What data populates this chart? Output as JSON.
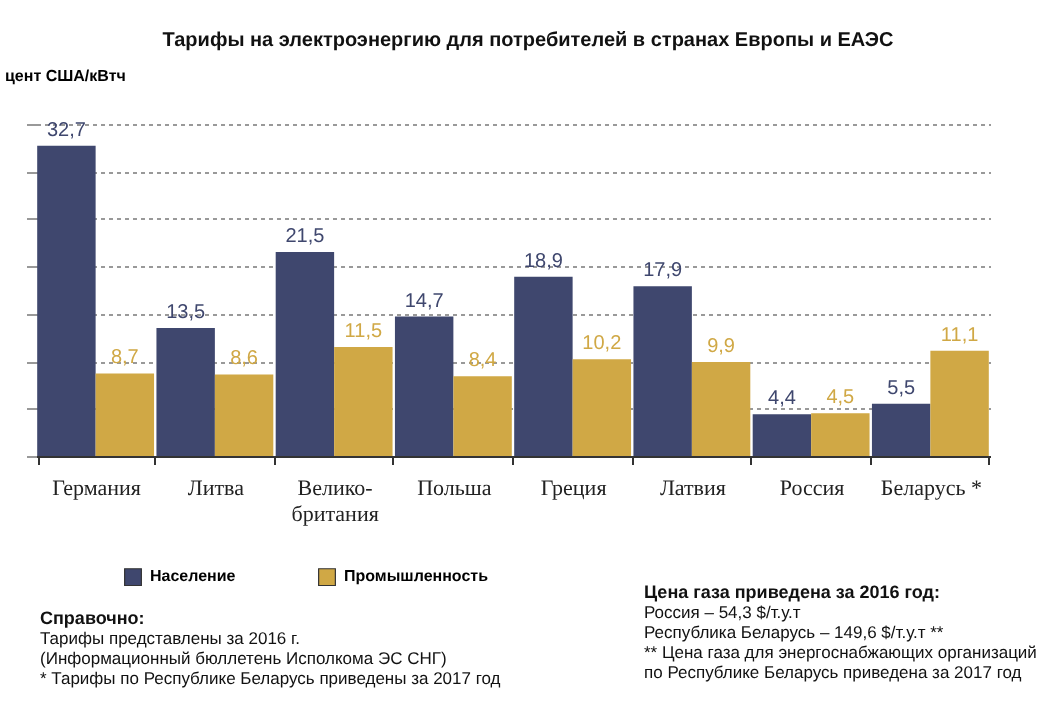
{
  "chart_data": {
    "type": "bar",
    "title": "Тарифы на электроэнергию для потребителей в странах Европы и ЕАЭС",
    "ylabel": "цент США/кВтч",
    "categories": [
      "Германия",
      "Литва",
      "Велико-британия",
      "Польша",
      "Греция",
      "Латвия",
      "Россия",
      "Беларусь *"
    ],
    "series": [
      {
        "name": "Население",
        "color": "#3f476e",
        "values": [
          32.7,
          13.5,
          21.5,
          14.7,
          18.9,
          17.9,
          4.4,
          5.5
        ],
        "value_labels": [
          "32,7",
          "13,5",
          "21,5",
          "14,7",
          "18,9",
          "17,9",
          "4,4",
          "5,5"
        ]
      },
      {
        "name": "Промышленность",
        "color": "#d0a845",
        "values": [
          8.7,
          8.6,
          11.5,
          8.4,
          10.2,
          9.9,
          4.5,
          11.1
        ],
        "value_labels": [
          "8,7",
          "8,6",
          "11,5",
          "8,4",
          "10,2",
          "9,9",
          "4,5",
          "11,1"
        ]
      }
    ],
    "grid": "y",
    "legend": "bottom",
    "annotations": [
      "Справочно:",
      "Тарифы представлены за 2016 г.",
      "(Информационный бюллетень Исполкома ЭС СНГ)",
      "* Тарифы по Республике Беларусь приведены за 2017 год",
      "Цена газа приведена за 2016 год:",
      "Россия – 54,3 $/т.у.т",
      "Республика Беларусь – 149,6 $/т.у.т **",
      "** Цена газа для энергоснабжающих организаций по Республике Беларусь приведена за 2017 год"
    ]
  }
}
